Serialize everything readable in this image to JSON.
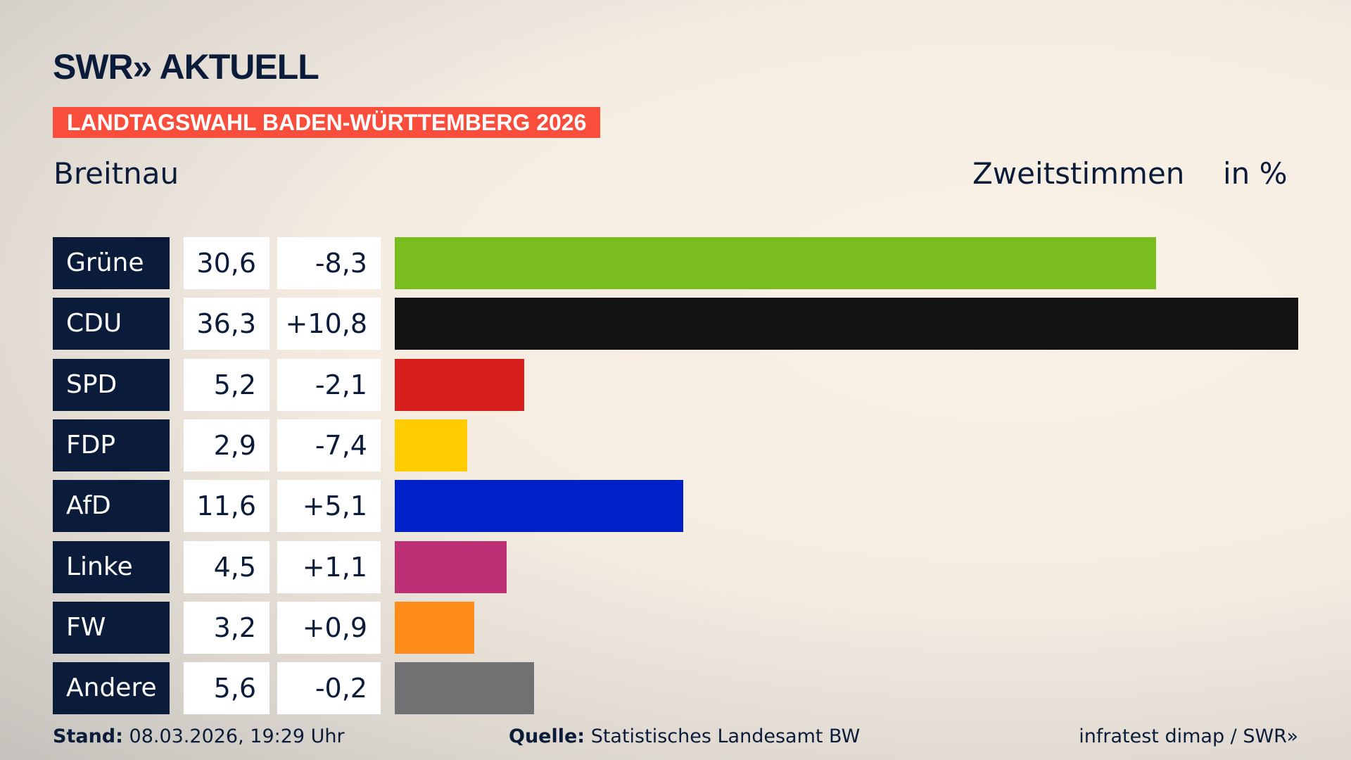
{
  "header": {
    "logo": "SWR» AKTUELL",
    "banner": "LANDTAGSWAHL BADEN-WÜRTTEMBERG 2026",
    "location": "Breitnau",
    "metric": "Zweitstimmen",
    "unit": "in %"
  },
  "chart_data": {
    "type": "bar",
    "orientation": "horizontal",
    "xlim": [
      0,
      36.3
    ],
    "categories": [
      "Grüne",
      "CDU",
      "SPD",
      "FDP",
      "AfD",
      "Linke",
      "FW",
      "Andere"
    ],
    "values": [
      30.6,
      36.3,
      5.2,
      2.9,
      11.6,
      4.5,
      3.2,
      5.6
    ],
    "value_labels": [
      "30,6",
      "36,3",
      "5,2",
      "2,9",
      "11,6",
      "4,5",
      "3,2",
      "5,6"
    ],
    "diff_labels": [
      "-8,3",
      "+10,8",
      "-2,1",
      "-7,4",
      "+5,1",
      "+1,1",
      "+0,9",
      "-0,2"
    ],
    "colors": [
      "#7abd1e",
      "#121212",
      "#d7201e",
      "#ffcc00",
      "#0020c8",
      "#bd3075",
      "#ff8c18",
      "#707173"
    ]
  },
  "footer": {
    "stand_label": "Stand:",
    "stand_value": "08.03.2026, 19:29 Uhr",
    "source_label": "Quelle:",
    "source_value": "Statistisches Landesamt BW",
    "credit": "infratest dimap / SWR»"
  }
}
